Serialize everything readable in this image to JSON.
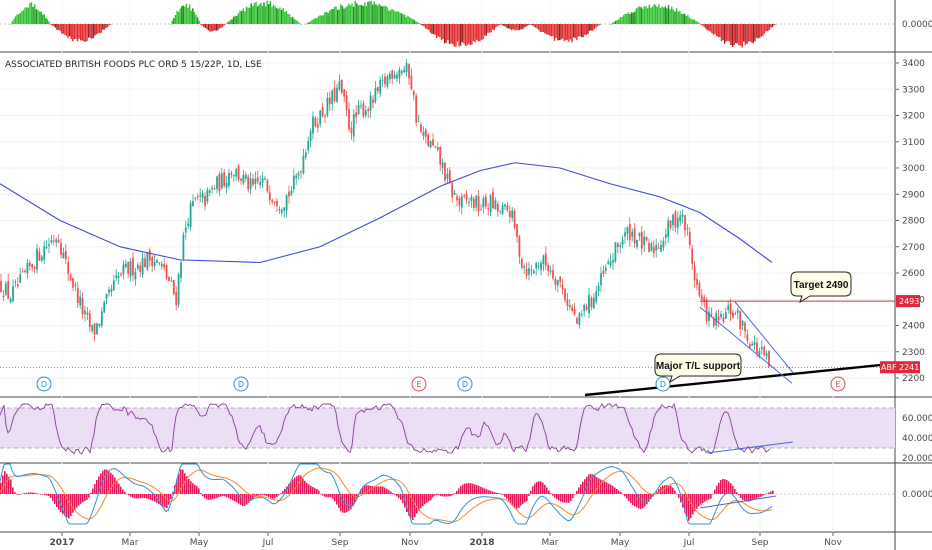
{
  "chart_data": {
    "type": "candlestick",
    "title": "ASSOCIATED BRITISH FOODS PLC ORD 5 15/22P, 1D, LSE",
    "symbol": "ABF",
    "current_price": {
      "label": "2241",
      "value": 2241
    },
    "target_level": {
      "label": "2493",
      "value": 2493
    },
    "price_axis": {
      "ticks": [
        "3400",
        "3300",
        "3200",
        "3100",
        "3000",
        "2900",
        "2800",
        "2700",
        "2600",
        "2500",
        "2400",
        "2300",
        "2200"
      ],
      "ylim": [
        2170,
        3430
      ]
    },
    "time_axis": {
      "ticks": [
        "2017",
        "Mar",
        "May",
        "Jul",
        "Sep",
        "Nov",
        "2018",
        "Mar",
        "May",
        "Jul",
        "Sep",
        "Nov"
      ]
    },
    "price_path": [
      [
        0,
        2560
      ],
      [
        10,
        2510
      ],
      [
        20,
        2560
      ],
      [
        30,
        2620
      ],
      [
        40,
        2680
      ],
      [
        50,
        2720
      ],
      [
        58,
        2750
      ],
      [
        65,
        2640
      ],
      [
        75,
        2540
      ],
      [
        85,
        2430
      ],
      [
        93,
        2370
      ],
      [
        102,
        2440
      ],
      [
        112,
        2540
      ],
      [
        122,
        2600
      ],
      [
        132,
        2620
      ],
      [
        142,
        2640
      ],
      [
        152,
        2660
      ],
      [
        162,
        2620
      ],
      [
        170,
        2560
      ],
      [
        176,
        2500
      ],
      [
        182,
        2700
      ],
      [
        188,
        2820
      ],
      [
        195,
        2870
      ],
      [
        205,
        2880
      ],
      [
        215,
        2930
      ],
      [
        225,
        2960
      ],
      [
        232,
        3000
      ],
      [
        242,
        2960
      ],
      [
        252,
        2920
      ],
      [
        262,
        2950
      ],
      [
        272,
        2900
      ],
      [
        282,
        2870
      ],
      [
        292,
        2920
      ],
      [
        300,
        3000
      ],
      [
        310,
        3150
      ],
      [
        320,
        3200
      ],
      [
        330,
        3250
      ],
      [
        340,
        3310
      ],
      [
        350,
        3150
      ],
      [
        360,
        3220
      ],
      [
        370,
        3240
      ],
      [
        380,
        3300
      ],
      [
        392,
        3370
      ],
      [
        402,
        3380
      ],
      [
        410,
        3360
      ],
      [
        416,
        3200
      ],
      [
        422,
        3120
      ],
      [
        432,
        3080
      ],
      [
        442,
        3010
      ],
      [
        450,
        2920
      ],
      [
        460,
        2860
      ],
      [
        470,
        2880
      ],
      [
        480,
        2850
      ],
      [
        490,
        2870
      ],
      [
        500,
        2830
      ],
      [
        510,
        2840
      ],
      [
        515,
        2760
      ],
      [
        522,
        2640
      ],
      [
        530,
        2600
      ],
      [
        540,
        2650
      ],
      [
        550,
        2620
      ],
      [
        560,
        2560
      ],
      [
        570,
        2470
      ],
      [
        578,
        2400
      ],
      [
        585,
        2470
      ],
      [
        592,
        2500
      ],
      [
        600,
        2560
      ],
      [
        610,
        2640
      ],
      [
        620,
        2720
      ],
      [
        630,
        2760
      ],
      [
        640,
        2720
      ],
      [
        650,
        2680
      ],
      [
        660,
        2720
      ],
      [
        670,
        2780
      ],
      [
        680,
        2830
      ],
      [
        688,
        2740
      ],
      [
        694,
        2600
      ],
      [
        700,
        2500
      ],
      [
        710,
        2420
      ],
      [
        720,
        2410
      ],
      [
        730,
        2460
      ],
      [
        738,
        2430
      ],
      [
        746,
        2370
      ],
      [
        754,
        2320
      ],
      [
        762,
        2290
      ],
      [
        770,
        2241
      ]
    ],
    "moving_average": [
      [
        0,
        2940
      ],
      [
        60,
        2800
      ],
      [
        120,
        2700
      ],
      [
        180,
        2650
      ],
      [
        260,
        2640
      ],
      [
        320,
        2700
      ],
      [
        380,
        2810
      ],
      [
        440,
        2930
      ],
      [
        480,
        2990
      ],
      [
        515,
        3020
      ],
      [
        560,
        3000
      ],
      [
        610,
        2940
      ],
      [
        660,
        2890
      ],
      [
        700,
        2830
      ],
      [
        740,
        2730
      ],
      [
        772,
        2640
      ]
    ],
    "earnings_dividend_markers": [
      "D",
      "D",
      "E",
      "D",
      "D",
      "E"
    ],
    "annotations": [
      {
        "text": "Target 2490"
      },
      {
        "text": "Major T/L support"
      }
    ],
    "indicator_top": {
      "type": "histogram",
      "tick": "0.0000",
      "segments": [
        {
          "from": 10,
          "to": 50,
          "sign": 1,
          "peak": 0.9
        },
        {
          "from": 50,
          "to": 110,
          "sign": -1,
          "peak": 0.8
        },
        {
          "from": 170,
          "to": 200,
          "sign": 1,
          "peak": 0.9
        },
        {
          "from": 200,
          "to": 225,
          "sign": -1,
          "peak": 0.35
        },
        {
          "from": 225,
          "to": 300,
          "sign": 1,
          "peak": 1.0
        },
        {
          "from": 305,
          "to": 420,
          "sign": 1,
          "peak": 1.0
        },
        {
          "from": 420,
          "to": 500,
          "sign": -1,
          "peak": 1.0
        },
        {
          "from": 500,
          "to": 530,
          "sign": -1,
          "peak": 0.3
        },
        {
          "from": 530,
          "to": 600,
          "sign": -1,
          "peak": 0.8
        },
        {
          "from": 610,
          "to": 700,
          "sign": 1,
          "peak": 0.9
        },
        {
          "from": 700,
          "to": 775,
          "sign": -1,
          "peak": 1.0
        }
      ]
    },
    "rsi": {
      "ticks": [
        "60.0000",
        "40.0000",
        "20.0000"
      ],
      "upper_band": 70,
      "lower_band": 30,
      "ylim": [
        15,
        80
      ]
    },
    "macd": {
      "tick": "0.0000"
    },
    "colors": {
      "up_candle": "#26a69a",
      "down_candle": "#ef5350",
      "moving_average": "#3f4bd6",
      "target_line": "#e0283a",
      "trendline": "#000000",
      "wedge": "#4a6dd8",
      "rsi_line": "#8b3a9e",
      "rsi_band_fill": "#ecdff5",
      "macd_line": "#2b95d6",
      "signal_line": "#f28a2e",
      "macd_hist": "#e6195b",
      "hist_positive": "#2fc12f",
      "hist_negative": "#e12d2d",
      "dividend_marker": "#2b8fd1",
      "earnings_marker": "#e04a4a"
    }
  }
}
